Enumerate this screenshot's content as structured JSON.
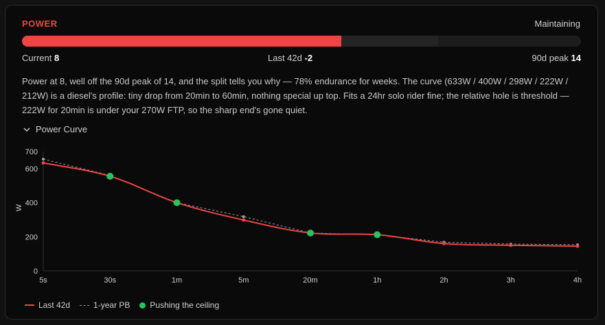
{
  "colors": {
    "accent": "#ef4444",
    "green": "#22c55e",
    "pb": "#9ca3af",
    "range": "#242424"
  },
  "metric": {
    "title": "POWER",
    "status": "Maintaining",
    "current_label": "Current",
    "current_value": "8",
    "last_label": "Last 42d",
    "last_value": "-2",
    "peak_label": "90d peak",
    "peak_value": "14",
    "bar_fraction": 0.5714,
    "range_fraction": 0.745
  },
  "summary": "Power at 8, well off the 90d peak of 14, and the split tells you why — 78% endurance for weeks. The curve (633W / 400W / 298W / 222W / 212W) is a diesel's profile: tiny drop from 20min to 60min, nothing special up top. Fits a 24hr solo rider fine; the relative hole is threshold — 222W for 20min is under your 270W FTP, so the sharp end's gone quiet.",
  "section": {
    "toggle_icon": "chevron-down-icon",
    "toggle_label": "Power Curve"
  },
  "chart_data": {
    "type": "line",
    "ylabel": "W",
    "ylim": [
      0,
      700
    ],
    "yticks": [
      0,
      200,
      400,
      600,
      700
    ],
    "categories": [
      "5s",
      "30s",
      "1m",
      "5m",
      "20m",
      "1h",
      "2h",
      "3h",
      "4h"
    ],
    "series": [
      {
        "name": "Last 42d",
        "values": [
          633,
          555,
          400,
          298,
          222,
          212,
          160,
          150,
          145
        ]
      },
      {
        "name": "1-year PB",
        "values": [
          655,
          560,
          400,
          318,
          222,
          212,
          168,
          157,
          153
        ]
      }
    ],
    "highlight": {
      "name": "Pushing the ceiling",
      "indices": [
        1,
        2,
        4,
        5
      ]
    }
  }
}
